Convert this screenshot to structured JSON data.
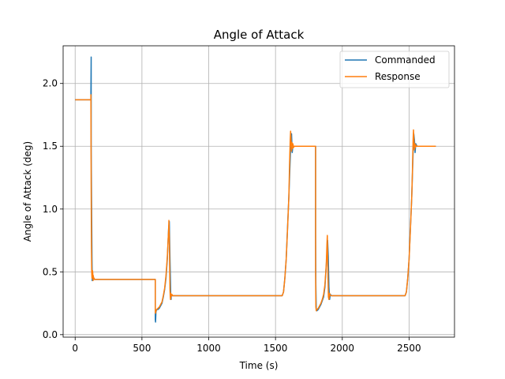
{
  "chart_data": {
    "type": "line",
    "title": "Angle of Attack",
    "xlabel": "Time (s)",
    "ylabel": "Angle of Attack (deg)",
    "xlim": [
      -90,
      2840
    ],
    "ylim": [
      -0.02,
      2.3
    ],
    "xticks": [
      0,
      500,
      1000,
      1500,
      2000,
      2500
    ],
    "xtick_labels": [
      "0",
      "500",
      "1000",
      "1500",
      "2000",
      "2500"
    ],
    "yticks": [
      0.0,
      0.5,
      1.0,
      1.5,
      2.0
    ],
    "ytick_labels": [
      "0.0",
      "0.5",
      "1.0",
      "1.5",
      "2.0"
    ],
    "grid": true,
    "legend_position": "upper right",
    "series": [
      {
        "name": "Commanded",
        "color": "#1f77b4",
        "x": [
          0,
          118,
          118,
          120,
          120,
          124,
          126,
          128,
          130,
          132,
          135,
          140,
          150,
          160,
          600,
          600,
          602,
          605,
          610,
          620,
          630,
          640,
          650,
          660,
          670,
          680,
          690,
          700,
          705,
          710,
          714,
          716,
          718,
          720,
          725,
          730,
          740,
          1550,
          1560,
          1570,
          1580,
          1590,
          1600,
          1610,
          1615,
          1620,
          1625,
          1630,
          1640,
          1650,
          1660,
          1800,
          1800,
          1802,
          1805,
          1810,
          1820,
          1830,
          1840,
          1850,
          1860,
          1870,
          1880,
          1890,
          1895,
          1900,
          1905,
          1910,
          1920,
          2470,
          2480,
          2490,
          2500,
          2510,
          2520,
          2530,
          2535,
          2540,
          2545,
          2550,
          2560,
          2570,
          2580,
          2700
        ],
        "y": [
          1.87,
          1.87,
          1.93,
          2.21,
          1.5,
          0.9,
          0.6,
          0.43,
          0.48,
          0.45,
          0.44,
          0.44,
          0.44,
          0.44,
          0.44,
          0.12,
          0.1,
          0.18,
          0.2,
          0.2,
          0.21,
          0.23,
          0.25,
          0.3,
          0.36,
          0.45,
          0.6,
          0.85,
          0.9,
          0.6,
          0.4,
          0.3,
          0.28,
          0.32,
          0.31,
          0.31,
          0.31,
          0.31,
          0.34,
          0.45,
          0.6,
          0.85,
          1.1,
          1.4,
          1.55,
          1.6,
          1.45,
          1.5,
          1.5,
          1.5,
          1.5,
          1.5,
          0.8,
          0.4,
          0.2,
          0.19,
          0.2,
          0.22,
          0.24,
          0.27,
          0.3,
          0.38,
          0.55,
          0.75,
          0.62,
          0.38,
          0.28,
          0.32,
          0.31,
          0.31,
          0.34,
          0.45,
          0.6,
          0.85,
          1.1,
          1.45,
          1.6,
          1.55,
          1.45,
          1.52,
          1.5,
          1.5,
          1.5,
          1.5
        ]
      },
      {
        "name": "Response",
        "color": "#ff7f0e",
        "x": [
          0,
          118,
          118,
          120,
          122,
          124,
          126,
          128,
          130,
          132,
          134,
          136,
          138,
          140,
          142,
          145,
          150,
          155,
          160,
          600,
          600,
          602,
          605,
          610,
          620,
          630,
          640,
          650,
          660,
          670,
          680,
          690,
          700,
          702,
          705,
          708,
          710,
          712,
          714,
          716,
          718,
          720,
          725,
          730,
          740,
          1550,
          1560,
          1570,
          1580,
          1590,
          1600,
          1605,
          1610,
          1613,
          1616,
          1620,
          1623,
          1626,
          1630,
          1635,
          1640,
          1650,
          1660,
          1800,
          1800,
          1802,
          1805,
          1810,
          1820,
          1830,
          1840,
          1850,
          1860,
          1870,
          1880,
          1885,
          1888,
          1890,
          1893,
          1896,
          1900,
          1905,
          1910,
          1920,
          2470,
          2480,
          2490,
          2500,
          2510,
          2520,
          2525,
          2530,
          2533,
          2536,
          2540,
          2543,
          2546,
          2550,
          2555,
          2560,
          2570,
          2580,
          2700
        ],
        "y": [
          1.87,
          1.87,
          1.91,
          1.2,
          0.7,
          0.5,
          0.45,
          0.46,
          0.51,
          0.49,
          0.43,
          0.47,
          0.45,
          0.44,
          0.45,
          0.44,
          0.44,
          0.44,
          0.44,
          0.44,
          0.18,
          0.17,
          0.19,
          0.2,
          0.21,
          0.22,
          0.24,
          0.26,
          0.31,
          0.37,
          0.47,
          0.62,
          0.84,
          0.91,
          0.78,
          0.5,
          0.36,
          0.3,
          0.28,
          0.33,
          0.3,
          0.31,
          0.32,
          0.31,
          0.31,
          0.31,
          0.34,
          0.45,
          0.6,
          0.84,
          1.1,
          1.35,
          1.55,
          1.62,
          1.55,
          1.46,
          1.53,
          1.48,
          1.52,
          1.49,
          1.5,
          1.5,
          1.5,
          1.5,
          0.5,
          0.22,
          0.19,
          0.2,
          0.21,
          0.23,
          0.25,
          0.28,
          0.32,
          0.4,
          0.56,
          0.72,
          0.79,
          0.65,
          0.45,
          0.3,
          0.28,
          0.33,
          0.31,
          0.31,
          0.31,
          0.34,
          0.45,
          0.6,
          0.84,
          1.1,
          1.3,
          1.55,
          1.63,
          1.55,
          1.47,
          1.52,
          1.49,
          1.51,
          1.5,
          1.5,
          1.5,
          1.5,
          1.5
        ]
      }
    ]
  }
}
